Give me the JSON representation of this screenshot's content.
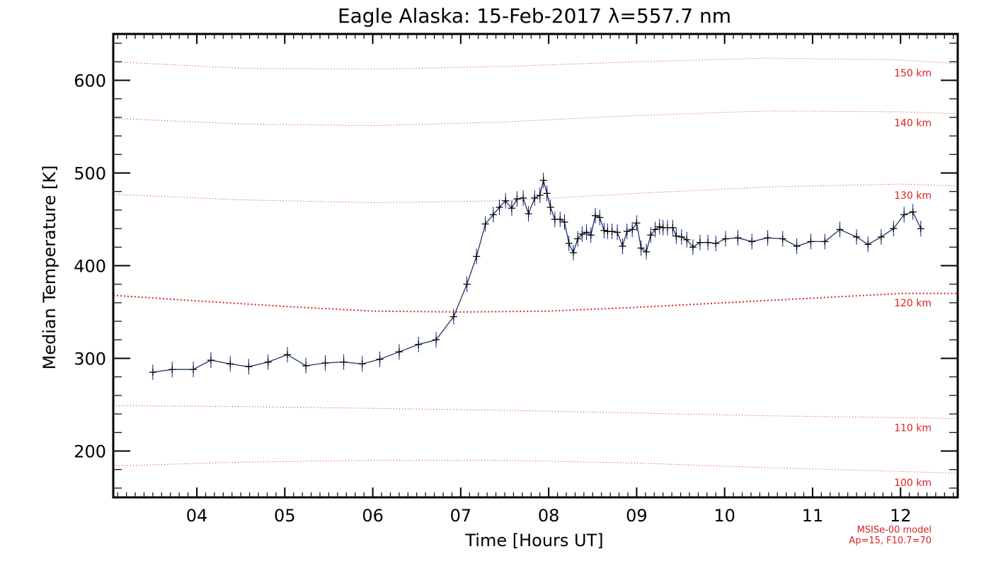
{
  "chart_data": {
    "type": "line",
    "title": "Eagle Alaska: 15-Feb-2017 λ=557.7 nm",
    "xlabel": "Time [Hours UT]",
    "ylabel": "Median Temperature [K]",
    "xlim": [
      3.05,
      12.65
    ],
    "ylim": [
      150,
      650
    ],
    "xticks": [
      4,
      5,
      6,
      7,
      8,
      9,
      10,
      11,
      12
    ],
    "xtick_labels": [
      "04",
      "05",
      "06",
      "07",
      "08",
      "09",
      "10",
      "11",
      "12"
    ],
    "yticks": [
      200,
      300,
      400,
      500,
      600
    ],
    "ytick_labels": [
      "200",
      "300",
      "400",
      "500",
      "600"
    ],
    "grid": false,
    "series": [
      {
        "color": "#1a3a5a",
        "marker": "+",
        "error_bars": true,
        "x": [
          3.5,
          3.72,
          3.96,
          4.16,
          4.38,
          4.59,
          4.81,
          5.03,
          5.24,
          5.46,
          5.67,
          5.88,
          6.08,
          6.3,
          6.52,
          6.72,
          6.92,
          7.07,
          7.18,
          7.28,
          7.37,
          7.44,
          7.51,
          7.58,
          7.64,
          7.71,
          7.77,
          7.84,
          7.9,
          7.94,
          7.98,
          8.02,
          8.07,
          8.13,
          8.18,
          8.23,
          8.28,
          8.33,
          8.38,
          8.43,
          8.48,
          8.53,
          8.58,
          8.63,
          8.67,
          8.72,
          8.78,
          8.84,
          8.89,
          8.95,
          9.0,
          9.05,
          9.11,
          9.16,
          9.21,
          9.26,
          9.3,
          9.35,
          9.41,
          9.45,
          9.51,
          9.57,
          9.64,
          9.72,
          9.81,
          9.9,
          10.01,
          10.15,
          10.31,
          10.49,
          10.66,
          10.82,
          10.98,
          11.14,
          11.31,
          11.5,
          11.63,
          11.78,
          11.92,
          12.04,
          12.14,
          12.23
        ],
        "y": [
          285,
          288,
          288,
          298,
          294,
          291,
          296,
          304,
          292,
          295,
          296,
          294,
          299,
          307,
          315,
          320,
          345,
          380,
          410,
          445,
          455,
          463,
          470,
          462,
          472,
          473,
          456,
          473,
          476,
          492,
          478,
          463,
          450,
          450,
          447,
          424,
          414,
          429,
          434,
          436,
          433,
          454,
          452,
          438,
          437,
          437,
          436,
          421,
          437,
          439,
          446,
          419,
          415,
          433,
          439,
          442,
          441,
          441,
          441,
          432,
          431,
          428,
          420,
          425,
          425,
          424,
          429,
          430,
          426,
          430,
          429,
          421,
          426,
          426,
          439,
          431,
          423,
          431,
          440,
          455,
          458,
          440
        ]
      }
    ],
    "model_curves": [
      {
        "label": "150 km",
        "x": [
          3.05,
          4.5,
          6.0,
          7.5,
          9.0,
          10.5,
          12.0,
          12.65
        ],
        "y": [
          620,
          613,
          612,
          615,
          620,
          624,
          622,
          618
        ]
      },
      {
        "label": "140 km",
        "x": [
          3.05,
          4.5,
          6.0,
          7.5,
          9.0,
          10.5,
          12.0,
          12.65
        ],
        "y": [
          559,
          553,
          551,
          555,
          562,
          567,
          566,
          564
        ]
      },
      {
        "label": "130 km",
        "x": [
          3.05,
          4.5,
          6.0,
          7.5,
          9.0,
          10.5,
          12.0,
          12.65
        ],
        "y": [
          477,
          471,
          468,
          470,
          478,
          485,
          488,
          486
        ]
      },
      {
        "label": "120 km",
        "x": [
          3.05,
          4.0,
          5.0,
          6.0,
          7.0,
          8.0,
          9.0,
          10.0,
          11.0,
          12.0,
          12.65
        ],
        "y": [
          368,
          362,
          356,
          351,
          350,
          351,
          355,
          360,
          365,
          370,
          370
        ]
      },
      {
        "label": "110 km",
        "x": [
          3.05,
          4.5,
          6.0,
          7.5,
          9.0,
          10.5,
          12.0,
          12.65
        ],
        "y": [
          249,
          248,
          246,
          244,
          241,
          238,
          236,
          235
        ]
      },
      {
        "label": "100 km",
        "x": [
          3.05,
          4.5,
          6.0,
          7.5,
          9.0,
          10.5,
          12.0,
          12.65
        ],
        "y": [
          184,
          188,
          190,
          190,
          187,
          182,
          178,
          176
        ]
      }
    ],
    "annotations": [
      "MSISe-00 model",
      "Ap=15, F10.7=70"
    ]
  }
}
